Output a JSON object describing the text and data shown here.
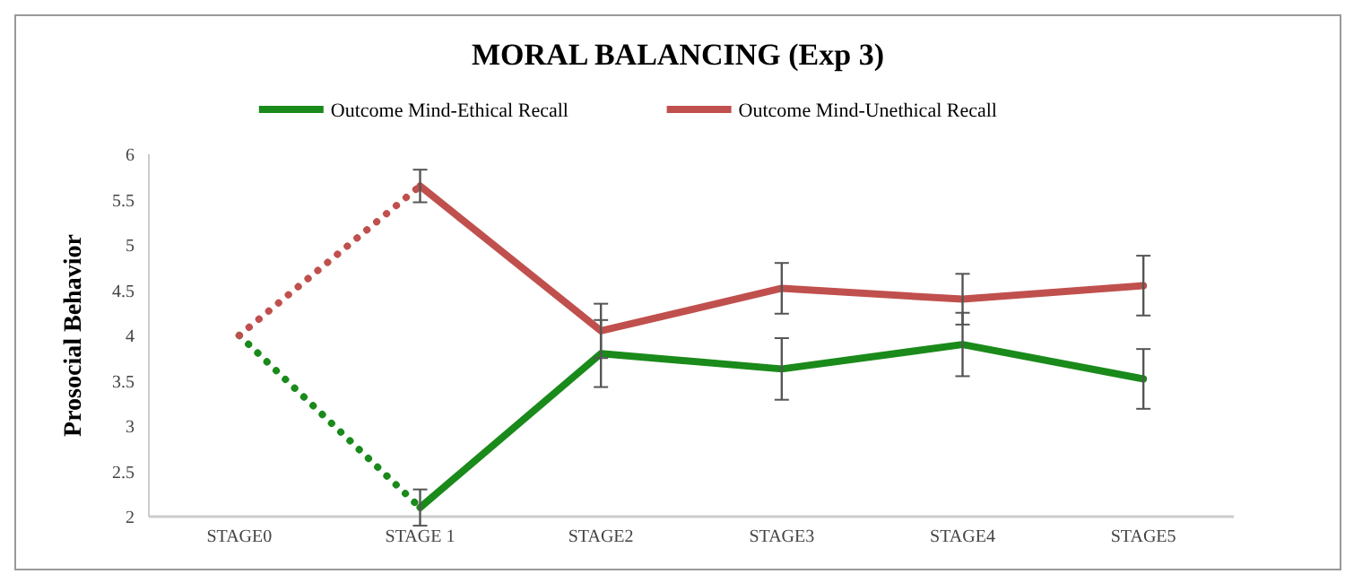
{
  "chart_data": {
    "type": "line",
    "title": "MORAL BALANCING (Exp 3)",
    "ylabel": "Prosocial Behavior",
    "categories": [
      "STAGE0",
      "STAGE 1",
      "STAGE2",
      "STAGE3",
      "STAGE4",
      "STAGE5"
    ],
    "ylim": [
      2,
      6
    ],
    "yticks": [
      2,
      2.5,
      3,
      3.5,
      4,
      4.5,
      5,
      5.5,
      6
    ],
    "grid": false,
    "legend": "top",
    "marker": "none",
    "series": [
      {
        "color": "#1a8a1a",
        "line_style": "dotted",
        "values": [
          4,
          2.1,
          null,
          null,
          null,
          null
        ]
      },
      {
        "color": "#c0504d",
        "line_style": "dotted",
        "values": [
          4,
          5.65,
          null,
          null,
          null,
          null
        ]
      },
      {
        "name": "Outcome Mind-Ethical Recall",
        "color": "#1a8a1a",
        "line_style": "solid",
        "values": [
          null,
          2.1,
          3.8,
          3.63,
          3.9,
          3.52
        ],
        "errors": [
          null,
          0.2,
          0.37,
          0.34,
          0.35,
          0.33
        ]
      },
      {
        "name": "Outcome Mind-Unethical Recall",
        "color": "#c0504d",
        "line_style": "solid",
        "values": [
          null,
          5.65,
          4.05,
          4.52,
          4.4,
          4.55
        ],
        "errors": [
          null,
          0.18,
          0.3,
          0.28,
          0.28,
          0.33
        ]
      }
    ]
  }
}
